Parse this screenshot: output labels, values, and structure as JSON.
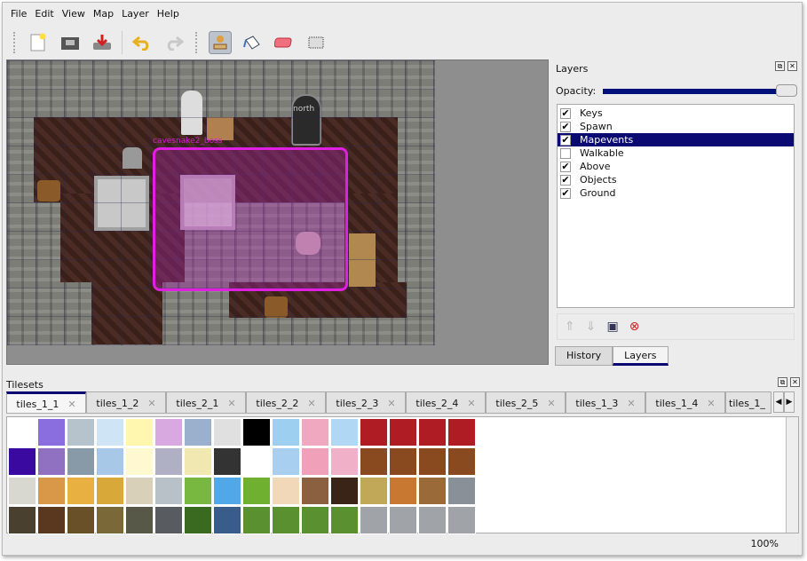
{
  "menu": [
    "File",
    "Edit",
    "View",
    "Map",
    "Layer",
    "Help"
  ],
  "toolbar": {
    "icons": [
      "new-file-icon",
      "open-icon",
      "save-icon",
      "undo-icon",
      "redo-icon",
      "stamp-brush-icon",
      "bucket-fill-icon",
      "eraser-icon",
      "rectangle-select-icon"
    ],
    "active": "stamp-brush-icon"
  },
  "map": {
    "object_labels": [
      "north",
      "cavesnake2_boss"
    ]
  },
  "layers_panel": {
    "title": "Layers",
    "opacity_label": "Opacity:",
    "opacity": 1.0,
    "layers": [
      {
        "name": "Keys",
        "visible": true
      },
      {
        "name": "Spawn",
        "visible": true
      },
      {
        "name": "Mapevents",
        "visible": true,
        "selected": true
      },
      {
        "name": "Walkable",
        "visible": false
      },
      {
        "name": "Above",
        "visible": true
      },
      {
        "name": "Objects",
        "visible": true
      },
      {
        "name": "Ground",
        "visible": true
      }
    ],
    "tabs": [
      "History",
      "Layers"
    ],
    "active_tab": "Layers"
  },
  "tilesets": {
    "title": "Tilesets",
    "tabs": [
      "tiles_1_1",
      "tiles_1_2",
      "tiles_2_1",
      "tiles_2_2",
      "tiles_2_3",
      "tiles_2_4",
      "tiles_2_5",
      "tiles_1_3",
      "tiles_1_4",
      "tiles_1_"
    ],
    "active_tab": "tiles_1_1",
    "tile_colors": [
      [
        "#ffffff",
        "#8a6ee0",
        "#b6c3cc",
        "#cfe4f5",
        "#fff6b0",
        "#d8a8e0",
        "#9ab0cc",
        "#e0e0e0",
        "#000000",
        "#9ccff0",
        "#f0a8c0",
        "#b0d8f4",
        "#b01c24",
        "#b01c24",
        "#b01c24",
        "#b01c24"
      ],
      [
        "#3a0aa0",
        "#9070c0",
        "#8899a8",
        "#a8c8e8",
        "#fff8d0",
        "#b0b0c4",
        "#f0e8b0",
        "#333333",
        "#ffffff",
        "#a8cff0",
        "#f0a0b8",
        "#f0b0c8",
        "#8a4a20",
        "#8a4a20",
        "#8a4a20",
        "#8a4a20"
      ],
      [
        "#d8d8d0",
        "#d89848",
        "#e8b040",
        "#d8a838",
        "#d8d0b8",
        "#b8c0c8",
        "#78b840",
        "#50a8e8",
        "#70b030",
        "#f0d8b8",
        "#8a6040",
        "#3a2418",
        "#c0a858",
        "#c87830",
        "#9a6a38",
        "#8a9098"
      ],
      [
        "#4a4030",
        "#5a3820",
        "#6a5028",
        "#7a6838",
        "#585848",
        "#585c60",
        "#3a6a20",
        "#3a5c8a",
        "#5a9030",
        "#5a9030",
        "#5a9030",
        "#5a9030",
        "#a0a4a8",
        "#a0a4a8",
        "#a0a4a8",
        "#a0a4a8"
      ]
    ]
  },
  "status": {
    "zoom": "100%"
  }
}
